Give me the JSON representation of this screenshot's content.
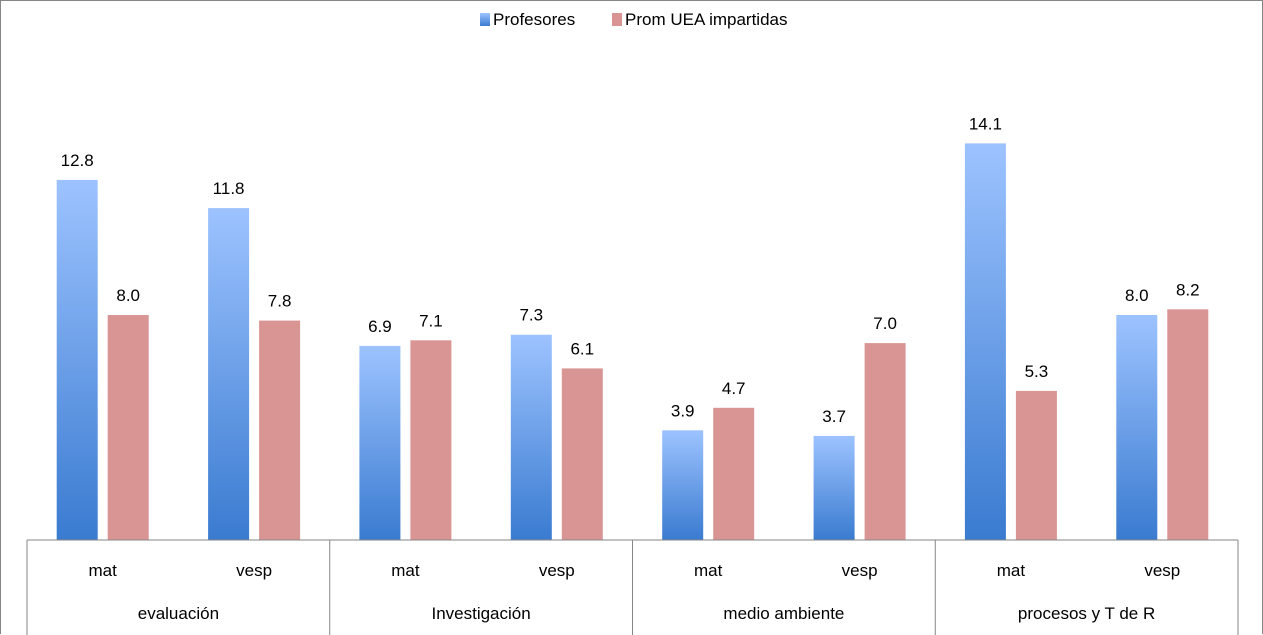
{
  "chart_data": {
    "type": "bar",
    "legend_position": "top",
    "grid": false,
    "ylim": [
      0,
      15.5
    ],
    "groups": [
      {
        "label": "evaluación",
        "subcategories": [
          "mat",
          "vesp"
        ]
      },
      {
        "label": "Investigación",
        "subcategories": [
          "mat",
          "vesp"
        ]
      },
      {
        "label": "medio ambiente",
        "subcategories": [
          "mat",
          "vesp"
        ]
      },
      {
        "label": "procesos y T de R",
        "subcategories": [
          "mat",
          "vesp"
        ]
      }
    ],
    "series": [
      {
        "name": "Profesores",
        "color": "#4F81BD",
        "values": [
          12.8,
          11.8,
          6.9,
          7.3,
          3.9,
          3.7,
          14.1,
          8.0
        ],
        "labels": [
          "12.8",
          "11.8",
          "6.9",
          "7.3",
          "3.9",
          "3.7",
          "14.1",
          "8.0"
        ]
      },
      {
        "name": "Prom UEA impartidas",
        "color": "#D99594",
        "values": [
          8.0,
          7.8,
          7.1,
          6.1,
          4.7,
          7.0,
          5.3,
          8.2
        ],
        "labels": [
          "8.0",
          "7.8",
          "7.1",
          "6.1",
          "4.7",
          "7.0",
          "5.3",
          "8.2"
        ]
      }
    ]
  }
}
